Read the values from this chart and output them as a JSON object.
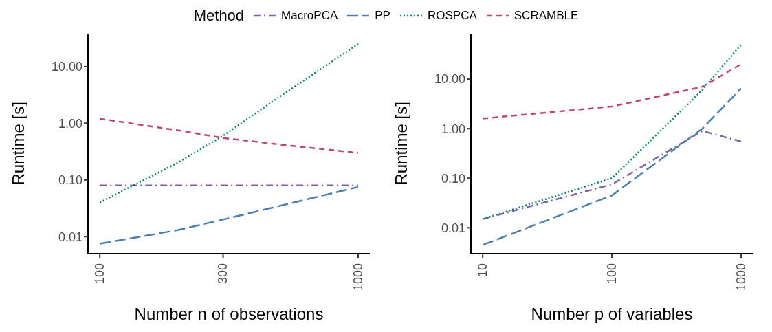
{
  "chart_data": [
    {
      "type": "line",
      "xlabel": "Number n of observations",
      "ylabel": "Runtime [s]",
      "log": "xy",
      "legend": "top",
      "legend_title": "Method",
      "marker": "none",
      "xlim": [
        90,
        1110
      ],
      "xticks": [
        100,
        300,
        1000
      ],
      "ylim": [
        0.005,
        37
      ],
      "yticks": [
        {
          "value": 0.01,
          "label": "0.01"
        },
        {
          "value": 0.1,
          "label": "0.10"
        },
        {
          "value": 1,
          "label": "1.00"
        },
        {
          "value": 10,
          "label": "10.00"
        }
      ],
      "x": [
        100,
        200,
        300,
        500,
        1000
      ],
      "series": [
        {
          "name": "MacroPCA",
          "color": "#7e62a8",
          "line_style": "dashdot",
          "values": [
            0.08,
            0.08,
            0.08,
            0.08,
            0.08
          ]
        },
        {
          "name": "PP",
          "color": "#4a7fb0",
          "line_style": "longdash",
          "values": [
            0.0075,
            0.013,
            0.02,
            0.035,
            0.075
          ]
        },
        {
          "name": "ROSPCA",
          "color": "#0f7f6f",
          "line_style": "dotted",
          "values": [
            0.04,
            0.2,
            0.6,
            3,
            25
          ]
        },
        {
          "name": "SCRAMBLE",
          "color": "#c0437a",
          "line_style": "dashed",
          "values": [
            1.2,
            0.75,
            0.55,
            0.42,
            0.3
          ]
        }
      ]
    },
    {
      "type": "line",
      "xlabel": "Number p of variables",
      "ylabel": "Runtime [s]",
      "log": "xy",
      "marker": "none",
      "xlim": [
        8.1,
        1230
      ],
      "xticks": [
        10,
        100,
        1000
      ],
      "ylim": [
        0.003,
        80
      ],
      "yticks": [
        {
          "value": 0.01,
          "label": "0.01"
        },
        {
          "value": 0.1,
          "label": "0.10"
        },
        {
          "value": 1,
          "label": "1.00"
        },
        {
          "value": 10,
          "label": "10.00"
        }
      ],
      "x": [
        10,
        100,
        500,
        1000
      ],
      "series": [
        {
          "color": "#7e62a8",
          "line_style": "dashdot",
          "values": [
            0.015,
            0.075,
            0.9,
            0.55
          ]
        },
        {
          "color": "#4a7fb0",
          "line_style": "longdash",
          "values": [
            0.0045,
            0.045,
            1.0,
            6.5
          ]
        },
        {
          "color": "#0f7f6f",
          "line_style": "dotted",
          "values": [
            0.015,
            0.1,
            6,
            50
          ]
        },
        {
          "color": "#c0437a",
          "line_style": "dashed",
          "values": [
            1.6,
            2.8,
            7,
            20
          ]
        }
      ]
    }
  ]
}
